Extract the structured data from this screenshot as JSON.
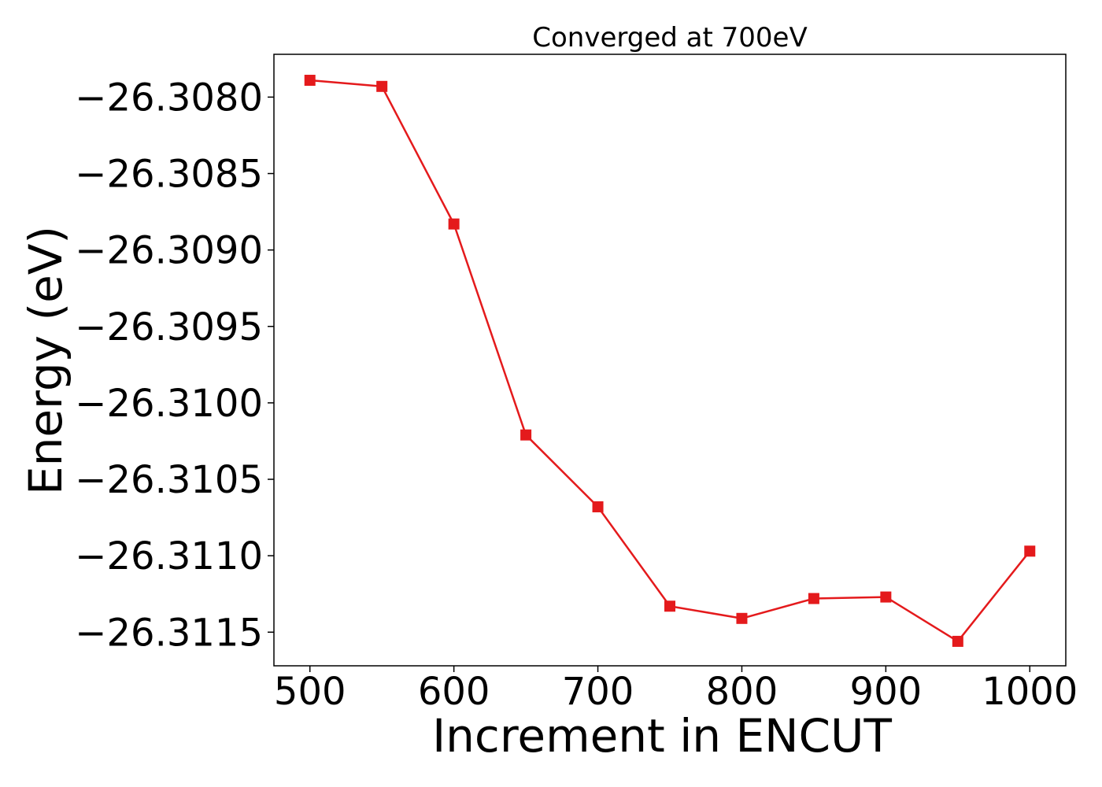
{
  "chart_data": {
    "type": "line",
    "title": "Converged at 700eV",
    "xlabel": "Increment in ENCUT",
    "ylabel": "Energy (eV)",
    "x": [
      500,
      550,
      600,
      650,
      700,
      750,
      800,
      850,
      900,
      950,
      1000
    ],
    "series": [
      {
        "values": [
          -26.30789,
          -26.30793,
          -26.30883,
          -26.31021,
          -26.31068,
          -26.31133,
          -26.31141,
          -26.31128,
          -26.31127,
          -26.31156,
          -26.31097
        ],
        "color": "#e41a1c",
        "marker": "square"
      }
    ],
    "xticks": [
      500,
      600,
      700,
      800,
      900,
      1000
    ],
    "xtick_labels": [
      "500",
      "600",
      "700",
      "800",
      "900",
      "1000"
    ],
    "yticks": [
      -26.308,
      -26.3085,
      -26.309,
      -26.3095,
      -26.31,
      -26.3105,
      -26.311,
      -26.3115
    ],
    "ytick_labels": [
      "−26.3080",
      "−26.3085",
      "−26.3090",
      "−26.3095",
      "−26.3100",
      "−26.3105",
      "−26.3110",
      "−26.3115"
    ],
    "xlim": [
      475,
      1025
    ],
    "ylim": [
      -26.31172,
      -26.30772
    ],
    "grid": false,
    "legend": "none"
  }
}
